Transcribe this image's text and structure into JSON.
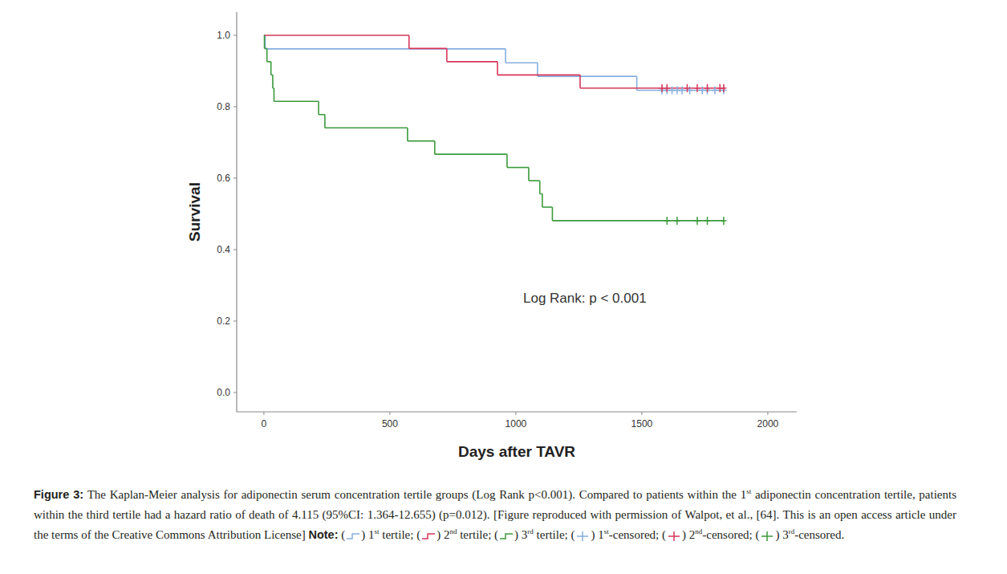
{
  "chart_data": {
    "type": "line",
    "xlabel": "Days after TAVR",
    "ylabel": "Survival",
    "annotation": "Log Rank: p < 0.001",
    "xlim": [
      -108,
      2115
    ],
    "ylim": [
      -0.054,
      1.065
    ],
    "xticks": [
      0,
      500,
      1000,
      1500,
      2000
    ],
    "yticks": [
      {
        "value": 0,
        "label": "0.0"
      },
      0.2,
      0.4,
      0.6,
      0.8,
      {
        "value": 1,
        "label": "1.0"
      }
    ],
    "grid": false,
    "series": [
      {
        "name": "1st tertile",
        "type": "line",
        "line_style": "step",
        "color": "#86aee0",
        "x": [
          0,
          5,
          959,
          1086,
          1480,
          1825
        ],
        "values": [
          1.0,
          0.962,
          0.923,
          0.885,
          0.846,
          0.846
        ]
      },
      {
        "name": "2nd tertile",
        "type": "line",
        "line_style": "step",
        "color": "#d6375a",
        "x": [
          0,
          576,
          726,
          927,
          1255,
          1825
        ],
        "values": [
          1.0,
          0.963,
          0.926,
          0.889,
          0.852,
          0.852
        ]
      },
      {
        "name": "3rd tertile",
        "type": "line",
        "line_style": "step",
        "color": "#3c9a3c",
        "x": [
          0,
          2,
          12,
          28,
          35,
          40,
          217,
          242,
          570,
          678,
          965,
          1051,
          1095,
          1105,
          1145,
          1825
        ],
        "values": [
          1.0,
          0.963,
          0.926,
          0.889,
          0.852,
          0.815,
          0.778,
          0.741,
          0.704,
          0.667,
          0.63,
          0.593,
          0.556,
          0.519,
          0.481,
          0.481
        ]
      },
      {
        "name": "1st-censored",
        "type": "scatter",
        "marker": "plus",
        "color": "#86aee0",
        "x": [
          1580,
          1600,
          1620,
          1640,
          1660,
          1690,
          1740,
          1760,
          1790,
          1825
        ],
        "values": [
          0.846,
          0.846,
          0.846,
          0.846,
          0.846,
          0.846,
          0.846,
          0.846,
          0.846,
          0.846
        ]
      },
      {
        "name": "2nd-censored",
        "type": "scatter",
        "marker": "plus",
        "color": "#d6375a",
        "x": [
          1580,
          1600,
          1680,
          1720,
          1760,
          1810,
          1825
        ],
        "values": [
          0.852,
          0.852,
          0.852,
          0.852,
          0.852,
          0.852,
          0.852
        ]
      },
      {
        "name": "3rd-censored",
        "type": "scatter",
        "marker": "plus",
        "color": "#3c9a3c",
        "x": [
          1600,
          1640,
          1720,
          1760,
          1825
        ],
        "values": [
          0.481,
          0.481,
          0.481,
          0.481,
          0.481
        ]
      }
    ]
  },
  "figure_label": "Figure 3:",
  "caption": [
    {
      "text": "The Kaplan-Meier analysis for adiponectin serum concentration tertile groups (Log Rank p<0.001). Compared to patients within the 1"
    },
    {
      "sup": "st"
    },
    {
      "text": " adiponectin concentration tertile, patients within the third tertile had a hazard ratio of death of 4.115 (95%CI: 1.364-12.655) (p=0.012). [Figure reproduced with permission of Walpot, et al., [64]. This is an open access article under the terms of the Creative Commons Attribution License]"
    }
  ],
  "note": {
    "label": "Note:",
    "open": "(",
    "close": ")",
    "separator": ";",
    "end": "."
  }
}
